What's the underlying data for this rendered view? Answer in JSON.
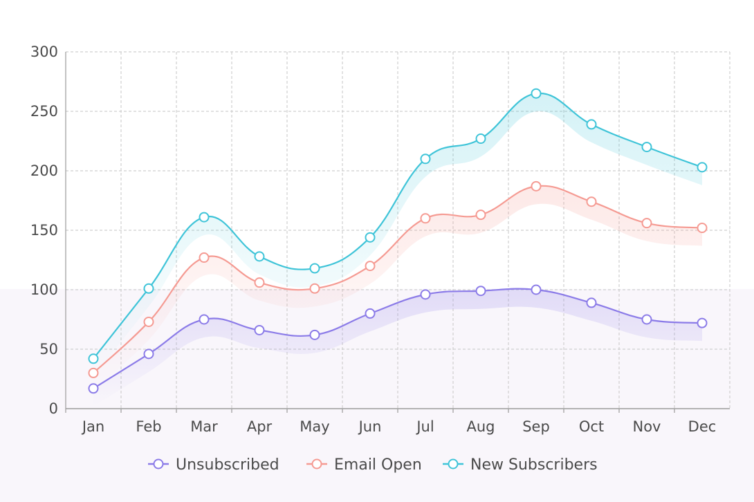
{
  "chart_data": {
    "type": "line",
    "smooth": true,
    "categories": [
      "Jan",
      "Feb",
      "Mar",
      "Apr",
      "May",
      "Jun",
      "Jul",
      "Aug",
      "Sep",
      "Oct",
      "Nov",
      "Dec"
    ],
    "ylim": [
      0,
      300
    ],
    "yticks": [
      0,
      50,
      100,
      150,
      200,
      250,
      300
    ],
    "grid": true,
    "legend_position": "bottom",
    "series": [
      {
        "name": "Unsubscribed",
        "color": "#8b7be8",
        "values": [
          17,
          46,
          75,
          66,
          62,
          80,
          96,
          99,
          100,
          89,
          75,
          72
        ]
      },
      {
        "name": "Email Open",
        "color": "#f59a92",
        "values": [
          30,
          73,
          127,
          106,
          101,
          120,
          160,
          163,
          187,
          174,
          156,
          152
        ]
      },
      {
        "name": "New Subscribers",
        "color": "#3fc4d8",
        "values": [
          42,
          101,
          161,
          128,
          118,
          144,
          210,
          227,
          265,
          239,
          220,
          203
        ]
      }
    ]
  }
}
